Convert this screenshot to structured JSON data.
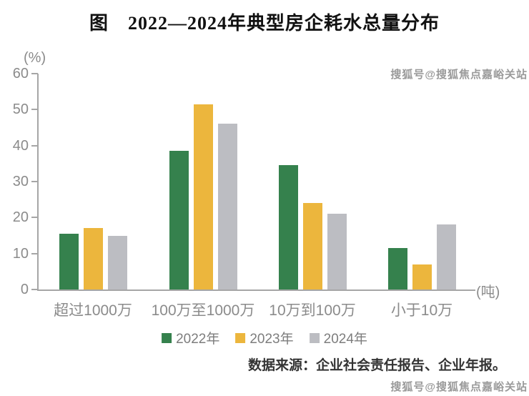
{
  "title": "图　2022—2024年典型房企耗水总量分布",
  "source_note": "数据来源：企业社会责任报告、企业年报。",
  "watermark_top": "搜狐号@搜狐焦点嘉峪关站",
  "watermark_bottom": "搜狐号@搜狐焦点嘉峪关站",
  "colors": {
    "axis": "#a6a6a6",
    "tick_text": "#8b8b8b",
    "legend_text": "#7d7d7d",
    "title_text": "#111111",
    "source_text": "#333333",
    "watermark_text": "#9a9a9a"
  },
  "chart_data": {
    "type": "bar",
    "title": "图　2022—2024年典型房企耗水总量分布",
    "categories": [
      "超过1000万",
      "100万至1000万",
      "10万到100万",
      "小于10万"
    ],
    "series": [
      {
        "name": "2022年",
        "color": "#35814d",
        "values": [
          15.5,
          38.5,
          34.5,
          11.5
        ]
      },
      {
        "name": "2023年",
        "color": "#ecb63d",
        "values": [
          17,
          51.5,
          24,
          7
        ]
      },
      {
        "name": "2024年",
        "color": "#bcbdc2",
        "values": [
          15,
          46,
          21,
          18
        ]
      }
    ],
    "ylabel": "(%)",
    "x_unit_label": "(吨)",
    "ylim": [
      0,
      60
    ],
    "yticks": [
      0,
      10,
      20,
      30,
      40,
      50,
      60
    ],
    "grid": false,
    "legend_position": "bottom"
  }
}
